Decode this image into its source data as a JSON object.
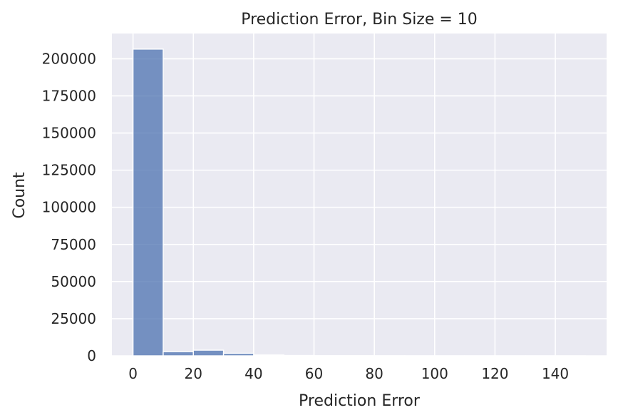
{
  "chart_data": {
    "type": "bar",
    "title": "Prediction Error, Bin Size = 10",
    "xlabel": "Prediction Error",
    "ylabel": "Count",
    "bin_size": 10,
    "bins": [
      {
        "start": 0,
        "end": 10,
        "count": 206500
      },
      {
        "start": 10,
        "end": 20,
        "count": 2800
      },
      {
        "start": 20,
        "end": 30,
        "count": 3800
      },
      {
        "start": 30,
        "end": 40,
        "count": 1700
      },
      {
        "start": 40,
        "end": 50,
        "count": 600
      },
      {
        "start": 50,
        "end": 60,
        "count": 250
      },
      {
        "start": 60,
        "end": 70,
        "count": 120
      },
      {
        "start": 70,
        "end": 80,
        "count": 80
      },
      {
        "start": 80,
        "end": 90,
        "count": 50
      },
      {
        "start": 90,
        "end": 100,
        "count": 30
      },
      {
        "start": 100,
        "end": 110,
        "count": 20
      },
      {
        "start": 110,
        "end": 120,
        "count": 15
      },
      {
        "start": 120,
        "end": 130,
        "count": 10
      },
      {
        "start": 130,
        "end": 140,
        "count": 8
      },
      {
        "start": 140,
        "end": 150,
        "count": 5
      }
    ],
    "xlim": [
      -7,
      157
    ],
    "ylim": [
      0,
      217000
    ],
    "xticks": [
      0,
      20,
      40,
      60,
      80,
      100,
      120,
      140
    ],
    "yticks": [
      0,
      25000,
      50000,
      75000,
      100000,
      125000,
      150000,
      175000,
      200000
    ],
    "grid": true,
    "colors": {
      "background": "#eaeaf2",
      "grid": "#ffffff",
      "bar_fill": "#4c72b0",
      "bar_opacity": 0.75,
      "bar_edge": "#ffffff",
      "text": "#262626"
    }
  }
}
